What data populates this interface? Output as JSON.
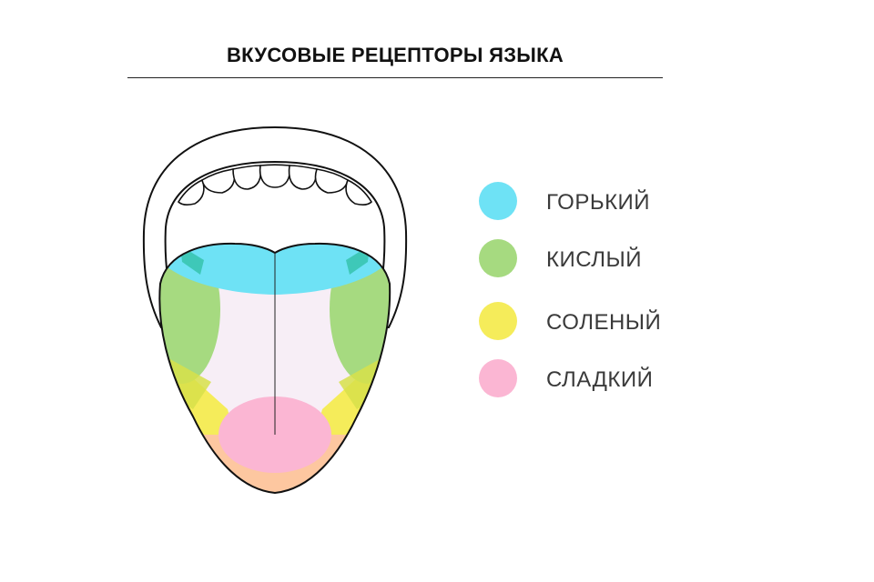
{
  "title": "ВКУСОВЫЕ РЕЦЕПТОРЫ ЯЗЫКА",
  "colors": {
    "bitter": "#6ee2f5",
    "sour": "#a6da80",
    "salty": "#f5ec5a",
    "sweet": "#fbb6d3",
    "tip_overlap": "#fdc7a0",
    "neutral": "#f7eef6",
    "outline": "#111111"
  },
  "legend": {
    "items": [
      {
        "label": "ГОРЬКИЙ",
        "color": "#6ee2f5",
        "icon": "color-dot"
      },
      {
        "label": "КИСЛЫЙ",
        "color": "#a6da80",
        "icon": "color-dot"
      },
      {
        "label": "СОЛЕНЫЙ",
        "color": "#f5ec5a",
        "icon": "color-dot"
      },
      {
        "label": "СЛАДКИЙ",
        "color": "#fbb6d3",
        "icon": "color-dot"
      }
    ]
  }
}
